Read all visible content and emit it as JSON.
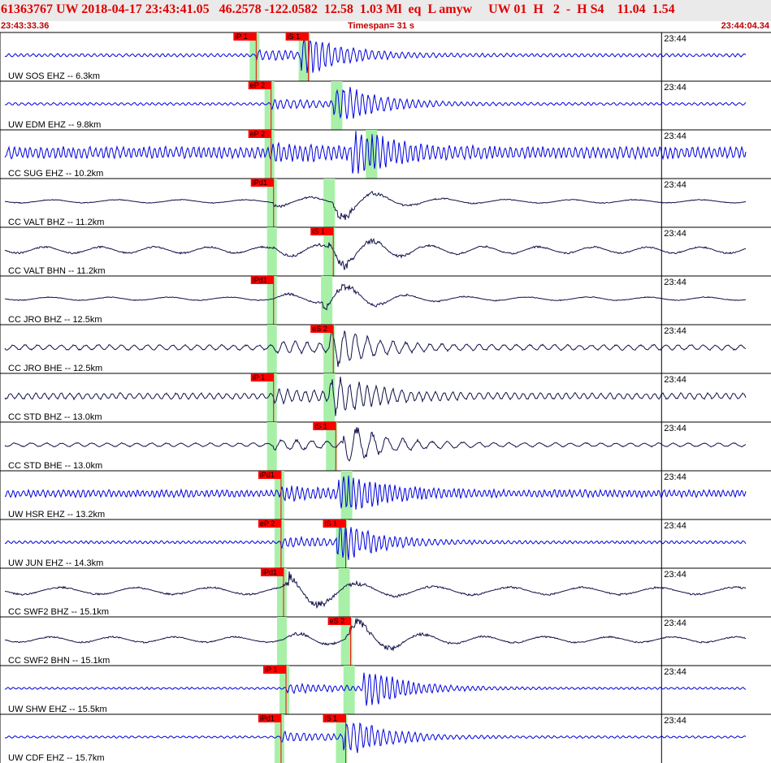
{
  "header": {
    "title": "61363767 UW 2018-04-17 23:43:41.05   46.2578 -122.0582  12.58  1.03 Ml  eq  L amyw     UW 01  H   2  -  H S4    11.04  1.54",
    "start_time": "23:43:33.36",
    "timespan": "Timespan=  31 s",
    "end_time": "23:44:04.34"
  },
  "colors": {
    "title_text": "#e00000",
    "blue_trace": "#0000dd",
    "black_trace": "#10104a",
    "pick": "#ff0000",
    "window": "#a8f0a8"
  },
  "chart_data": {
    "type": "seismogram",
    "time_range": [
      0,
      31
    ],
    "minute_mark": {
      "label": "23:44",
      "t": 26.6
    },
    "channels": [
      {
        "label": "UW SOS EHZ -- 6.3km",
        "color": "blue",
        "p_pick": "iP 1",
        "p_t": 10.3,
        "s_pick": "iS 1",
        "s_t": 12.4,
        "amp_arrival": 12.5,
        "noise": 0.08,
        "period": 0.25
      },
      {
        "label": "UW EDM EHZ -- 9.8km",
        "color": "blue",
        "p_pick": "eP 2",
        "p_t": 10.9,
        "s_pick": "",
        "s_t": 13.7,
        "amp_arrival": 13.8,
        "noise": 0.05,
        "period": 0.25
      },
      {
        "label": "CC SUG EHZ -- 10.2km",
        "color": "blue",
        "p_pick": "eP 2",
        "p_t": 10.9,
        "s_pick": "",
        "s_t": 15.1,
        "amp_arrival": 14.5,
        "noise": 0.55,
        "period": 0.22
      },
      {
        "label": "CC VALT BHZ -- 11.2km",
        "color": "black",
        "p_pick": "iPd1",
        "p_t": 11.0,
        "s_pick": "",
        "s_t": 13.4,
        "amp_arrival": 13.8,
        "noise": 0.1,
        "period": 2.6
      },
      {
        "label": "CC VALT BHN -- 11.2km",
        "color": "black",
        "p_pick": "",
        "p_t": 11.0,
        "s_pick": "iS 1",
        "s_t": 13.4,
        "amp_arrival": 13.6,
        "noise": 0.3,
        "period": 2.2
      },
      {
        "label": "CC JRO BHZ -- 12.5km",
        "color": "black",
        "p_pick": "iPd1",
        "p_t": 11.0,
        "s_pick": "",
        "s_t": 13.3,
        "amp_arrival": 13.4,
        "noise": 0.1,
        "period": 2.4
      },
      {
        "label": "CC JRO BHE -- 12.5km",
        "color": "black",
        "p_pick": "",
        "p_t": 11.0,
        "s_pick": "eS 2",
        "s_t": 13.4,
        "amp_arrival": 13.6,
        "noise": 0.2,
        "period": 0.5
      },
      {
        "label": "CC STD BHZ -- 13.0km",
        "color": "black",
        "p_pick": "iP 1",
        "p_t": 11.0,
        "s_pick": "",
        "s_t": 13.4,
        "amp_arrival": 13.6,
        "noise": 0.25,
        "period": 0.35
      },
      {
        "label": "CC STD BHE -- 13.0km",
        "color": "black",
        "p_pick": "",
        "p_t": 11.0,
        "s_pick": "iS 1",
        "s_t": 13.5,
        "amp_arrival": 14.2,
        "noise": 0.12,
        "period": 0.6
      },
      {
        "label": "UW HSR EHZ -- 13.2km",
        "color": "blue",
        "p_pick": "iPd1",
        "p_t": 11.3,
        "s_pick": "",
        "s_t": 14.1,
        "amp_arrival": 14.0,
        "noise": 0.3,
        "period": 0.2
      },
      {
        "label": "UW JUN EHZ -- 14.3km",
        "color": "blue",
        "p_pick": "eP 2",
        "p_t": 11.3,
        "s_pick": "iS 1",
        "s_t": 13.9,
        "amp_arrival": 13.9,
        "noise": 0.06,
        "period": 0.22
      },
      {
        "label": "CC SWF2 BHZ -- 15.1km",
        "color": "black",
        "p_pick": "iPd1",
        "p_t": 11.4,
        "s_pick": "",
        "s_t": 14.0,
        "amp_arrival": 12.0,
        "noise": 0.35,
        "period": 3.0
      },
      {
        "label": "CC SWF2 BHN -- 15.1km",
        "color": "black",
        "p_pick": "",
        "p_t": 11.4,
        "s_pick": "eS 2",
        "s_t": 14.1,
        "amp_arrival": 14.3,
        "noise": 0.25,
        "period": 2.5
      },
      {
        "label": "UW SHW EHZ -- 15.5km",
        "color": "blue",
        "p_pick": "iP 1",
        "p_t": 11.5,
        "s_pick": "",
        "s_t": 14.2,
        "amp_arrival": 15.0,
        "noise": 0.02,
        "period": 0.22
      },
      {
        "label": "UW CDF EHZ -- 15.7km",
        "color": "blue",
        "p_pick": "iPd1",
        "p_t": 11.3,
        "s_pick": "iS 1",
        "s_t": 13.9,
        "amp_arrival": 14.2,
        "noise": 0.02,
        "period": 0.25
      }
    ]
  }
}
